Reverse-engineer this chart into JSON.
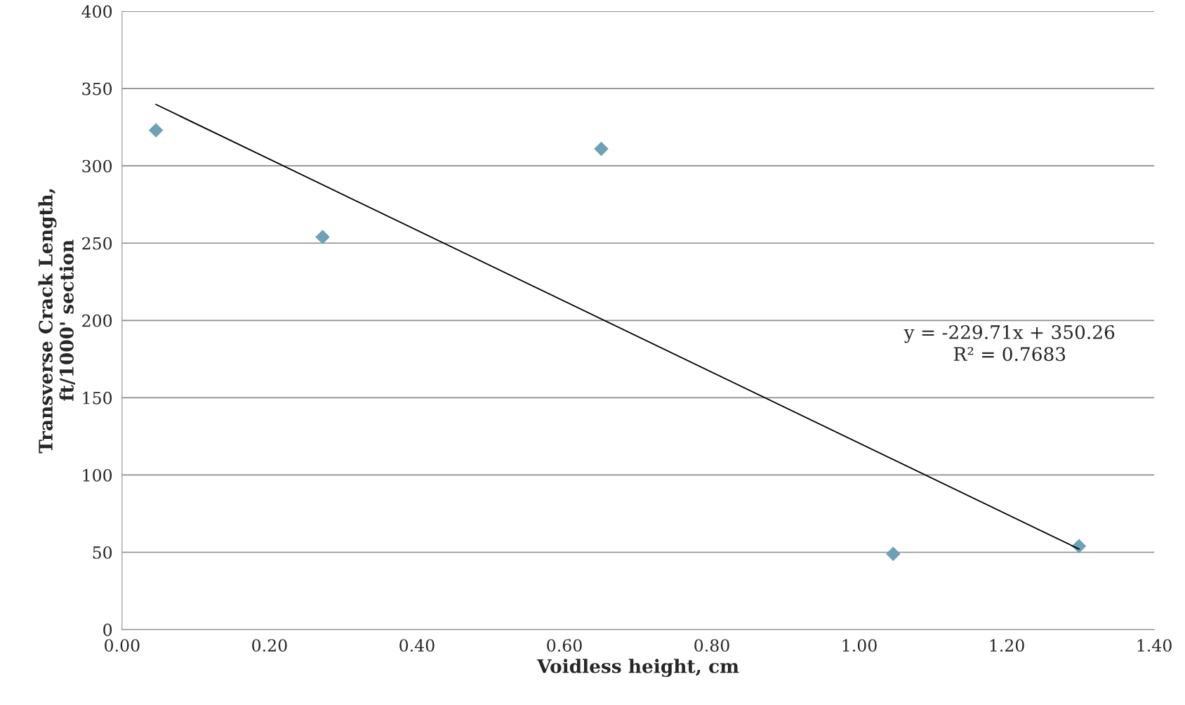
{
  "chart_data": {
    "type": "scatter",
    "xlabel": "Voidless height, cm",
    "ylabel": "Transverse Crack Length,\nft/1000' section",
    "series": [
      {
        "color": "#6fa0b4",
        "marker": "diamond",
        "x": [
          0.046,
          0.272,
          0.65,
          1.046,
          1.298
        ],
        "values": [
          323,
          254,
          311,
          49,
          54
        ]
      },
      {
        "type": "line",
        "color": "#000000",
        "marker": "none",
        "line_style": "solid",
        "x": [
          0.046,
          1.298
        ],
        "values": [
          339.7,
          52.1
        ]
      }
    ],
    "annotations": [
      "y = -229.71x + 350.26",
      "R² = 0.7683"
    ],
    "xlim": [
      0,
      1.4
    ],
    "ylim": [
      0,
      400
    ],
    "xticks": [
      {
        "value": 0,
        "label": "0.00"
      },
      {
        "value": 0.2,
        "label": "0.20"
      },
      {
        "value": 0.4,
        "label": "0.40"
      },
      {
        "value": 0.6,
        "label": "0.60"
      },
      {
        "value": 0.8,
        "label": "0.80"
      },
      {
        "value": 1.0,
        "label": "1.00"
      },
      {
        "value": 1.2,
        "label": "1.20"
      },
      {
        "value": 1.4,
        "label": "1.40"
      }
    ],
    "yticks": [
      0,
      50,
      100,
      150,
      200,
      250,
      300,
      350,
      400
    ],
    "grid": "y",
    "legend": false
  }
}
